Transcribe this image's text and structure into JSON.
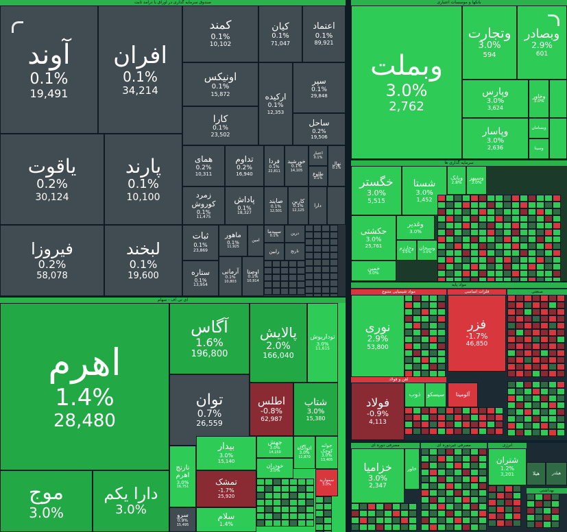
{
  "panels": {
    "fund": "صندوق سرمایه گذاری در اوراق با درآمد ثابت",
    "bank": "بانکها و موسسات اعتباری",
    "etf": "ای تی اف - سهام",
    "capital": "سرمایه گذاری ها",
    "basic": "مواد پایه",
    "chemical": "مواد شیمیایی متنوع",
    "metals": "فلزات اساسی",
    "iron": "آهن و فولاد",
    "industrial": "صنعتی",
    "consumer_cyclical": "مصرفی دوره ای",
    "consumer_staples": "مصرفی غیردوره ای",
    "energy": "انرژی",
    "health": "بهداشتی"
  },
  "fund_tiles": [
    {
      "name": "آوند",
      "pct": "0.1%",
      "price": "19,491"
    },
    {
      "name": "افران",
      "pct": "0.1%",
      "price": "34,214"
    },
    {
      "name": "کمند",
      "pct": "0.1%",
      "price": "10,102"
    },
    {
      "name": "کیان",
      "pct": "0.1%",
      "price": "71,047"
    },
    {
      "name": "اعتماد",
      "pct": "0.1%",
      "price": "89,921"
    },
    {
      "name": "اونیکس",
      "pct": "0.1%",
      "price": "15,872"
    },
    {
      "name": "ارکیده",
      "pct": "0.1%",
      "price": "12,353"
    },
    {
      "name": "سپر",
      "pct": "0.1%",
      "price": "29,848"
    },
    {
      "name": "کارا",
      "pct": "0.1%",
      "price": "23,502"
    },
    {
      "name": "ساحل",
      "pct": "0.2%",
      "price": "19,506"
    },
    {
      "name": "یاقوت",
      "pct": "0.2%",
      "price": "30,124"
    },
    {
      "name": "پارند",
      "pct": "0.1%",
      "price": "10,100"
    },
    {
      "name": "همای",
      "pct": "0.2%",
      "price": "10,311"
    },
    {
      "name": "تداوم",
      "pct": "0.2%",
      "price": "16,940"
    },
    {
      "name": "فردا",
      "pct": "0.1%",
      "price": "22,811"
    },
    {
      "name": "خورشید",
      "pct": "0.1%",
      "price": "14,105"
    },
    {
      "name": "زمرد کوروش",
      "pct": "0.1%",
      "price": "11,475"
    },
    {
      "name": "پاداش",
      "pct": "0.1%",
      "price": "18,327"
    },
    {
      "name": "صایند",
      "pct": "0.1%",
      "price": "12,501"
    },
    {
      "name": "کارین",
      "pct": "0.1%",
      "price": "12,125"
    },
    {
      "name": "فیروزا",
      "pct": "0.2%",
      "price": "58,078"
    },
    {
      "name": "لبخند",
      "pct": "0.1%",
      "price": "19,600"
    },
    {
      "name": "ثبات",
      "pct": "0.1%",
      "price": "23,869"
    },
    {
      "name": "ماهور",
      "pct": "0.1%",
      "price": "11,925"
    },
    {
      "name": "سپیدما",
      "pct": "0.1%",
      "price": "12,001"
    },
    {
      "name": "ستاره",
      "pct": "0.1%",
      "price": "13,954"
    },
    {
      "name": "آرمانی",
      "pct": "0.1%",
      "price": "10,803"
    },
    {
      "name": "اوصتا",
      "pct": "0.1%",
      "price": "10,914"
    },
    {
      "name": "اعتبار",
      "pct": "0.1%",
      "price": "10,301"
    },
    {
      "name": "طلوع",
      "pct": "0.1%",
      "price": ""
    },
    {
      "name": "نهال",
      "pct": "0.1%",
      "price": ""
    },
    {
      "name": "دارا",
      "pct": "0.1%",
      "price": ""
    },
    {
      "name": "رابین",
      "pct": "0.1%",
      "price": ""
    },
    {
      "name": "امین",
      "pct": "0.1%",
      "price": ""
    },
    {
      "name": "درین",
      "pct": "0.1%",
      "price": ""
    },
    {
      "name": "نارنج",
      "pct": "0.1%",
      "price": ""
    }
  ],
  "bank_tiles": [
    {
      "name": "وبملت",
      "pct": "3.0%",
      "price": "2,762"
    },
    {
      "name": "وتجارت",
      "pct": "3.0%",
      "price": "594"
    },
    {
      "name": "وبصادر",
      "pct": "2.9%",
      "price": "601"
    },
    {
      "name": "وپارس",
      "pct": "3.0%",
      "price": "3,624"
    },
    {
      "name": "وخاور",
      "pct": "3.0%",
      "price": ""
    },
    {
      "name": "وبسامان",
      "pct": "",
      "price": ""
    },
    {
      "name": "وپاسار",
      "pct": "3.0%",
      "price": "2,636"
    },
    {
      "name": "وسینا",
      "pct": "",
      "price": ""
    }
  ],
  "etf_tiles": [
    {
      "name": "اهرم",
      "pct": "1.4%",
      "price": "28,480"
    },
    {
      "name": "آگاس",
      "pct": "1.6%",
      "price": "196,800"
    },
    {
      "name": "پالایش",
      "pct": "2.0%",
      "price": "166,040"
    },
    {
      "name": "توداریوش",
      "pct": "3.0%",
      "price": "11,615"
    },
    {
      "name": "توان",
      "pct": "0.7%",
      "price": "26,559"
    },
    {
      "name": "اطلس",
      "pct": "-0.8%",
      "price": "62,987"
    },
    {
      "name": "شتاب",
      "pct": "3.0%",
      "price": "15,380"
    },
    {
      "name": "بیدار",
      "pct": "3.0%",
      "price": "15,140"
    },
    {
      "name": "جهش",
      "pct": "3.0%",
      "price": "14,150"
    },
    {
      "name": "اتوآگاه",
      "pct": "3.0%",
      "price": "11,870"
    },
    {
      "name": "جوانه کوچک",
      "pct": "3.0%",
      "price": "13,405"
    },
    {
      "name": "نارنج اهرم",
      "pct": "3.0%",
      "price": "16,751"
    },
    {
      "name": "تمشک",
      "pct": "-1.7%",
      "price": "25,920"
    },
    {
      "name": "خودران",
      "pct": "3.0%",
      "price": "10,610"
    },
    {
      "name": "سموارید",
      "pct": "3.0%",
      "price": ""
    },
    {
      "name": "موج",
      "pct": "3.0%",
      "price": ""
    },
    {
      "name": "دارا یکم",
      "pct": "3.0%",
      "price": ""
    },
    {
      "name": "سرو",
      "pct": "0.9%",
      "price": "15,495"
    },
    {
      "name": "سلام",
      "pct": "1.4%",
      "price": ""
    },
    {
      "name": "ثمین",
      "pct": "3.0%",
      "price": ""
    }
  ],
  "capital_tiles": [
    {
      "name": "خگستر",
      "pct": "3.0%",
      "price": "5,515"
    },
    {
      "name": "شستا",
      "pct": "3.0%",
      "price": "1,452"
    },
    {
      "name": "وبانک",
      "pct": "2.8%",
      "price": ""
    },
    {
      "name": "وسپهر",
      "pct": "3.0%",
      "price": ""
    },
    {
      "name": "حکشتی",
      "pct": "3.0%",
      "price": "25,761"
    },
    {
      "name": "وغدیر",
      "pct": "3.0%",
      "price": ""
    },
    {
      "name": "وخارزم",
      "pct": "3.0%",
      "price": ""
    },
    {
      "name": "وسبحان",
      "pct": "3.0%",
      "price": ""
    },
    {
      "name": "خمین",
      "pct": "3.0%",
      "price": ""
    }
  ],
  "basic_tiles": [
    {
      "name": "نوری",
      "pct": "2.9%",
      "price": "53,800"
    },
    {
      "name": "فزر",
      "pct": "-1.7%",
      "price": "46,850"
    },
    {
      "name": "فولاد",
      "pct": "-0.9%",
      "price": "4,113"
    },
    {
      "name": "ذوب",
      "pct": "",
      "price": ""
    },
    {
      "name": "سیسکو",
      "pct": "",
      "price": ""
    },
    {
      "name": "آلومینا",
      "pct": "",
      "price": ""
    }
  ],
  "lower_tiles": [
    {
      "name": "خزامیا",
      "pct": "3.0%",
      "price": "2,347"
    },
    {
      "name": "خاور",
      "pct": "",
      "price": ""
    },
    {
      "name": "شتران",
      "pct": "1.2%",
      "price": "3,201"
    },
    {
      "name": "هیلا",
      "pct": "",
      "price": ""
    },
    {
      "name": "هیلدر",
      "pct": "",
      "price": ""
    },
    {
      "name": "لپارس",
      "pct": "",
      "price": ""
    }
  ]
}
